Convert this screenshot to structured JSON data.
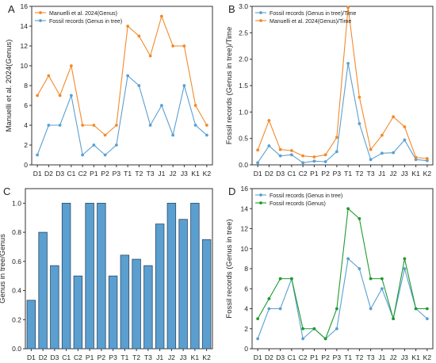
{
  "chart_data": [
    {
      "panel_label": "A",
      "type": "line",
      "categories": [
        "D1",
        "D2",
        "D3",
        "C1",
        "C2",
        "P1",
        "P2",
        "P3",
        "T1",
        "T2",
        "T3",
        "J1",
        "J2",
        "J3",
        "K1",
        "K2"
      ],
      "ylabel": "Manuelli et al. 2024(Genus)",
      "ylim": [
        0,
        16
      ],
      "yticks": [
        0,
        2,
        4,
        6,
        8,
        10,
        12,
        14,
        16
      ],
      "legend_position": "top-left",
      "series": [
        {
          "name": "Manuelli et al. 2024(Genus)",
          "color": "#f28a2b",
          "values": [
            7,
            9,
            7,
            10,
            4,
            4,
            3,
            4,
            14,
            13,
            11,
            15,
            12,
            12,
            6,
            4
          ]
        },
        {
          "name": "Fossil records (Genus in tree)",
          "color": "#5aa0d2",
          "values": [
            1,
            4,
            4,
            7,
            1,
            2,
            1,
            2,
            9,
            8,
            4,
            6,
            3,
            8,
            4,
            3
          ]
        }
      ]
    },
    {
      "panel_label": "B",
      "type": "line",
      "categories": [
        "D1",
        "D2",
        "D3",
        "C1",
        "C2",
        "P1",
        "P2",
        "P3",
        "T1",
        "T2",
        "T3",
        "J1",
        "J2",
        "J3",
        "K1",
        "K2"
      ],
      "ylabel": "Fossil records (Genus in tree)/Time",
      "ylim": [
        0,
        3.0
      ],
      "yticks": [
        0.0,
        0.5,
        1.0,
        1.5,
        2.0,
        2.5,
        3.0
      ],
      "legend_position": "top-left",
      "series": [
        {
          "name": "Fossil records (Genus in tree)/Time",
          "color": "#5aa0d2",
          "values": [
            0.04,
            0.36,
            0.17,
            0.19,
            0.04,
            0.07,
            0.06,
            0.25,
            1.92,
            0.78,
            0.1,
            0.22,
            0.23,
            0.47,
            0.1,
            0.08
          ]
        },
        {
          "name": "Manuelli et al. 2024(Genus)/Time",
          "color": "#f28a2b",
          "values": [
            0.28,
            0.84,
            0.29,
            0.27,
            0.17,
            0.15,
            0.19,
            0.52,
            2.98,
            1.28,
            0.29,
            0.56,
            0.91,
            0.72,
            0.14,
            0.12
          ]
        }
      ]
    },
    {
      "panel_label": "C",
      "type": "bar",
      "categories": [
        "D1",
        "D2",
        "D3",
        "C1",
        "C2",
        "P1",
        "P2",
        "P3",
        "T1",
        "T2",
        "T3",
        "J1",
        "J2",
        "J3",
        "K1",
        "K2"
      ],
      "ylabel": "Genus in tree/Genus",
      "ylim": [
        0,
        1.1
      ],
      "yticks": [
        0.0,
        0.2,
        0.4,
        0.6,
        0.8,
        1.0
      ],
      "color": "#5b9fd0",
      "values": [
        0.333,
        0.8,
        0.571,
        1.0,
        0.5,
        1.0,
        1.0,
        0.5,
        0.643,
        0.615,
        0.571,
        0.857,
        1.0,
        0.889,
        1.0,
        0.75
      ]
    },
    {
      "panel_label": "D",
      "type": "line",
      "categories": [
        "D1",
        "D2",
        "D3",
        "C1",
        "C2",
        "P1",
        "P2",
        "P3",
        "T1",
        "T2",
        "T3",
        "J1",
        "J2",
        "J3",
        "K1",
        "K2"
      ],
      "ylabel": "Fossil records (Genus in tree)",
      "ylim": [
        0,
        16
      ],
      "yticks": [
        0,
        2,
        4,
        6,
        8,
        10,
        12,
        14,
        16
      ],
      "legend_position": "top-left",
      "series": [
        {
          "name": "Fossil records (Genus in tree)",
          "color": "#5aa0d2",
          "values": [
            1,
            4,
            4,
            7,
            1,
            2,
            1,
            2,
            9,
            8,
            4,
            6,
            3,
            8,
            4,
            3
          ]
        },
        {
          "name": "Fossil records (Genus)",
          "color": "#1f9a2e",
          "values": [
            3,
            5,
            7,
            7,
            2,
            2,
            1,
            4,
            14,
            13,
            7,
            7,
            3,
            9,
            4,
            4
          ]
        }
      ]
    }
  ]
}
